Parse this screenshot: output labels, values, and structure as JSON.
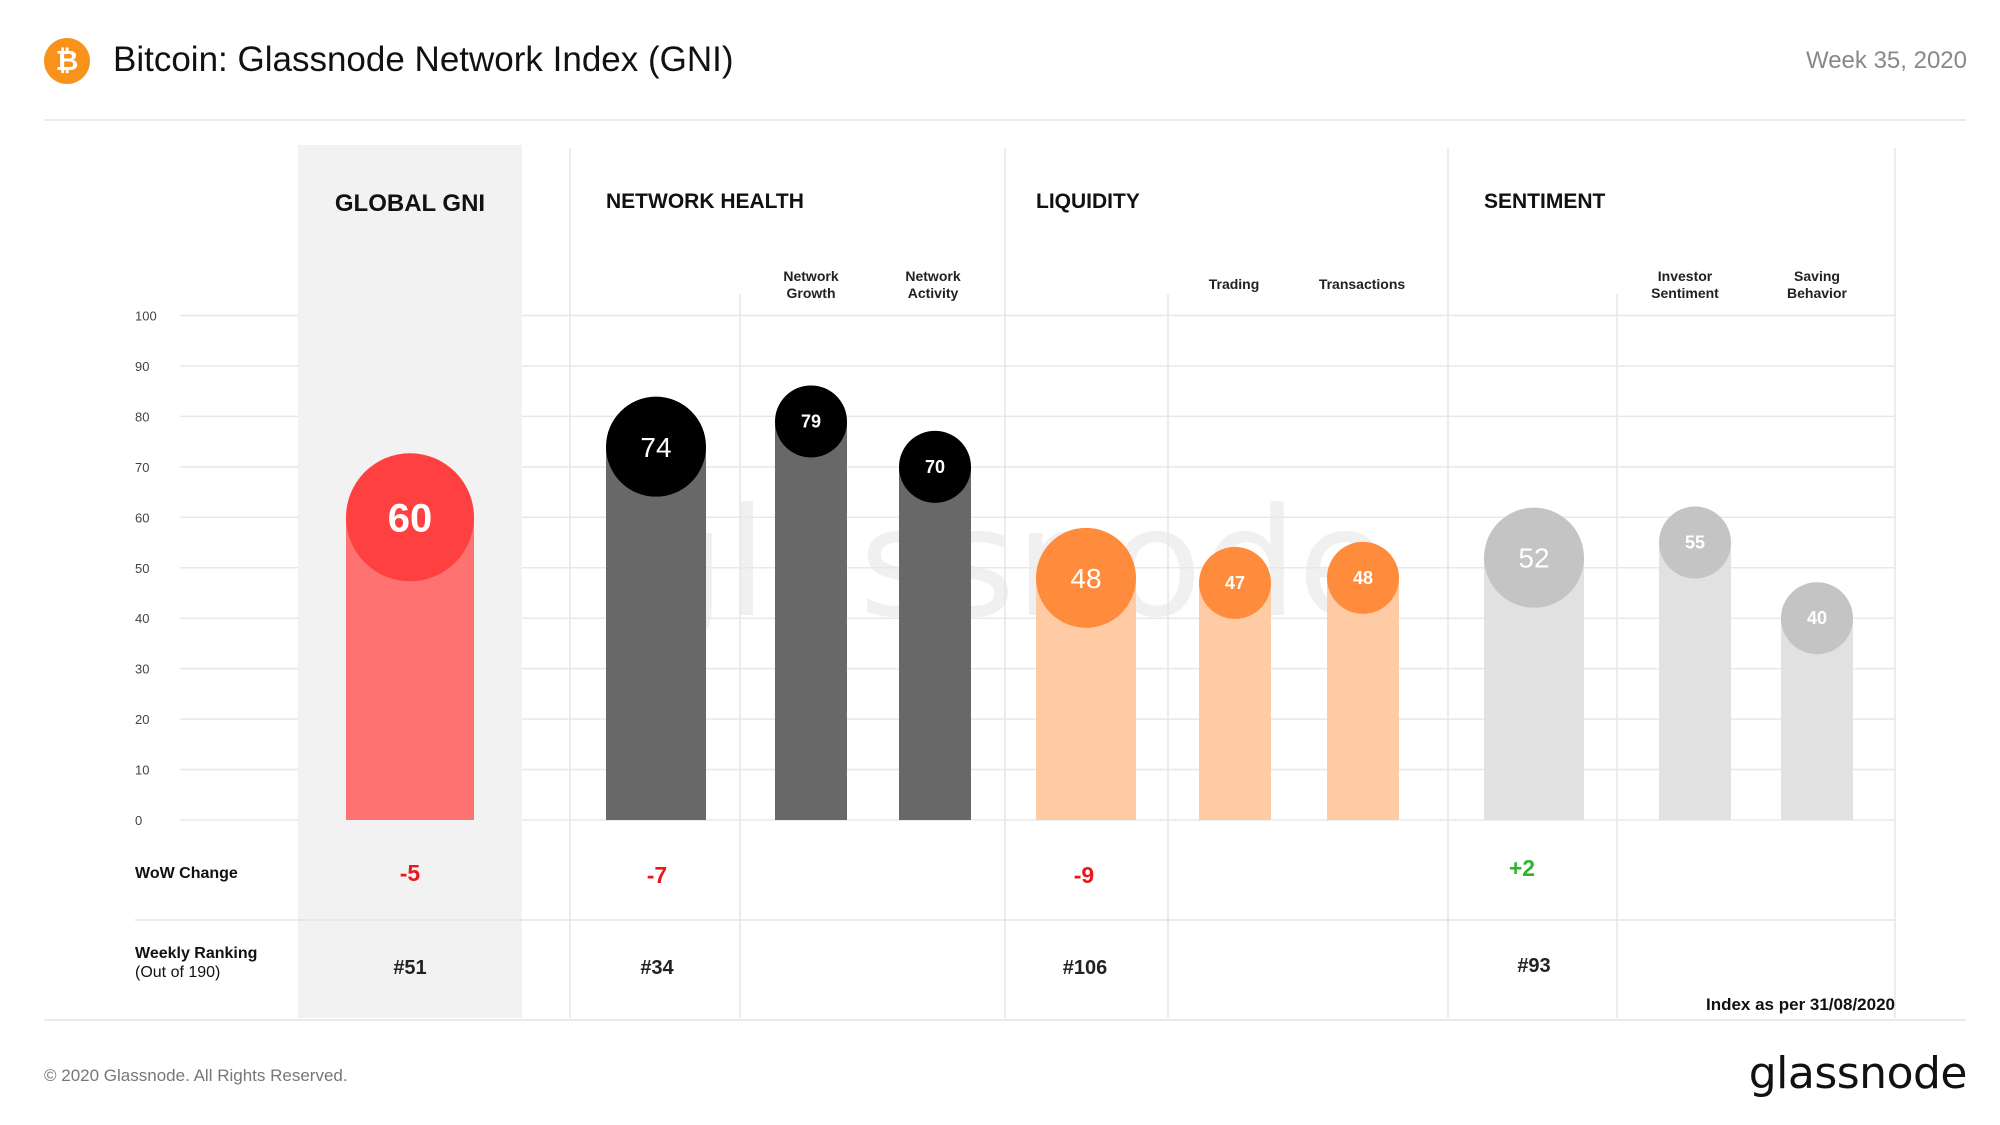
{
  "header": {
    "title": "Bitcoin: Glassnode Network Index (GNI)",
    "week": "Week 35, 2020",
    "logo_icon": "bitcoin-icon",
    "logo_symbol": "₿"
  },
  "footer": {
    "copyright": "© 2020 Glassnode. All Rights Reserved.",
    "brand": "glassnode",
    "index_note": "Index as per 31/08/2020"
  },
  "watermark": "glassnode",
  "colors": {
    "global": "#ff4040",
    "global_bar": "#ff7272",
    "network_health": "#000000",
    "network_health_bar": "#686868",
    "liquidity": "#ff8b3d",
    "liquidity_bar": "#ffcba5",
    "sentiment": "#c4c4c4",
    "sentiment_bar": "#e1e1e1",
    "negative": "#e8191e",
    "positive": "#2db52d",
    "global_panel": "#f2f2f2"
  },
  "row_labels": {
    "wow": "WoW  Change",
    "ranking": "Weekly Ranking",
    "ranking_sub": "(Out of 190)"
  },
  "chart_data": {
    "type": "bar",
    "ylim": [
      0,
      100
    ],
    "yticks": [
      0,
      10,
      20,
      30,
      40,
      50,
      60,
      70,
      80,
      90,
      100
    ],
    "groups": [
      {
        "name": "GLOBAL GNI",
        "value": 60,
        "wow_change": "-5",
        "ranking": "#51",
        "subcategories": []
      },
      {
        "name": "NETWORK HEALTH",
        "value": 74,
        "wow_change": "-7",
        "ranking": "#34",
        "subcategories": [
          {
            "name": [
              "Network",
              "Growth"
            ],
            "value": 79
          },
          {
            "name": [
              "Network",
              "Activity"
            ],
            "value": 70
          }
        ]
      },
      {
        "name": "LIQUIDITY",
        "value": 48,
        "wow_change": "-9",
        "ranking": "#106",
        "subcategories": [
          {
            "name": [
              "Trading"
            ],
            "value": 47
          },
          {
            "name": [
              "Transactions"
            ],
            "value": 48
          }
        ]
      },
      {
        "name": "SENTIMENT",
        "value": 52,
        "wow_change": "+2",
        "ranking": "#93",
        "subcategories": [
          {
            "name": [
              "Investor",
              "Sentiment"
            ],
            "value": 55
          },
          {
            "name": [
              "Saving",
              "Behavior"
            ],
            "value": 40
          }
        ]
      }
    ]
  }
}
